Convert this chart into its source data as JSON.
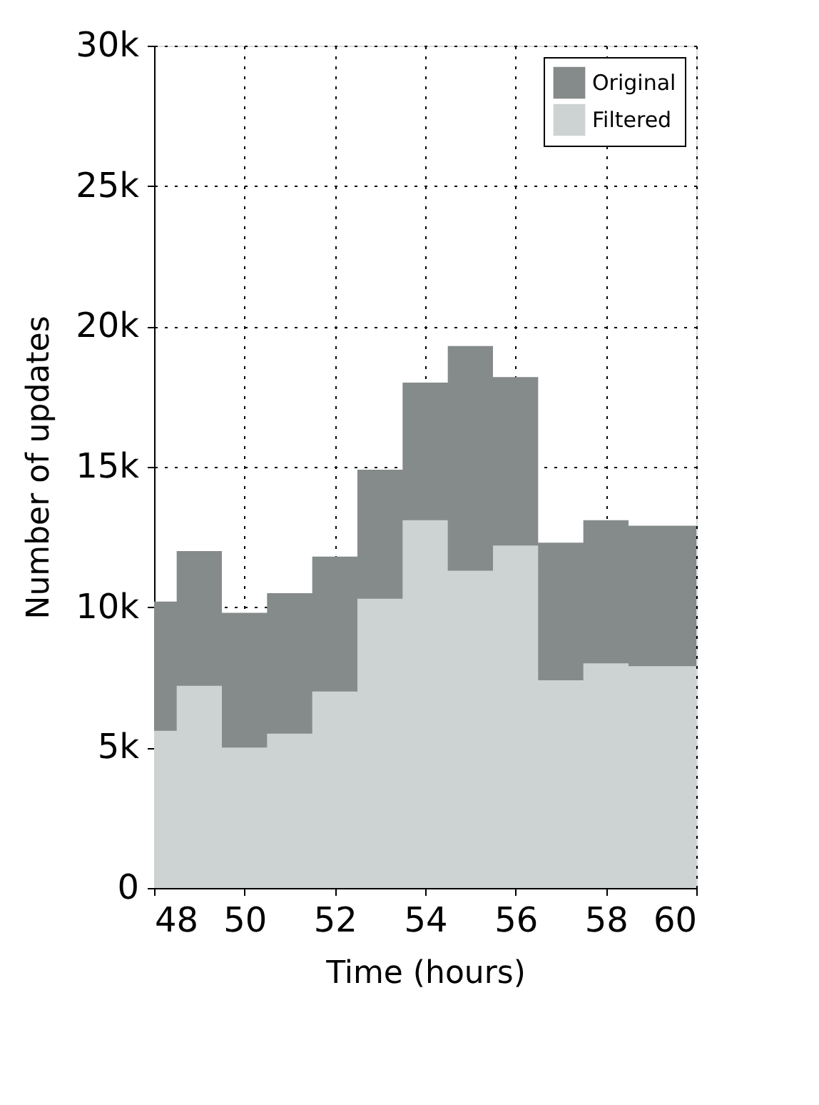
{
  "chart_data": {
    "type": "area",
    "xlabel": "Time (hours)",
    "ylabel": "Number of updates",
    "x": [
      48,
      48.5,
      49.5,
      50.5,
      51.5,
      52.5,
      53.5,
      54.5,
      55.5,
      56.5,
      57.5,
      58.5,
      60
    ],
    "series": [
      {
        "name": "Original",
        "color": "#858a8a",
        "values": [
          10.2,
          12.0,
          9.8,
          10.5,
          11.8,
          14.9,
          18.0,
          19.3,
          18.2,
          12.3,
          13.1,
          12.9,
          12.9
        ]
      },
      {
        "name": "Filtered",
        "color": "#cdd3d3",
        "values": [
          5.6,
          7.2,
          5.0,
          5.5,
          7.0,
          10.3,
          13.1,
          11.3,
          12.2,
          7.4,
          8.0,
          7.9,
          7.9
        ]
      }
    ],
    "xlim": [
      48,
      60
    ],
    "xticks": [
      48,
      50,
      52,
      54,
      56,
      58,
      60
    ],
    "ylim": [
      0,
      30
    ],
    "yticks": [
      0,
      {
        "value": 5,
        "label": "5k"
      },
      {
        "value": 10,
        "label": "10k"
      },
      {
        "value": 15,
        "label": "15k"
      },
      {
        "value": 20,
        "label": "20k"
      },
      {
        "value": 25,
        "label": "25k"
      },
      {
        "value": 30,
        "label": "30k"
      }
    ],
    "grid": true,
    "legend": "top right"
  }
}
